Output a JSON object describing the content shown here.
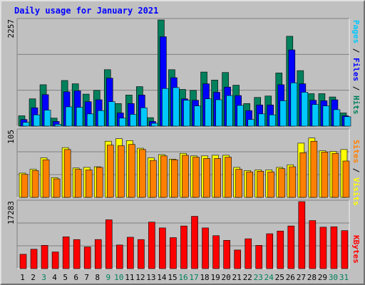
{
  "chart_data": {
    "type": "bar",
    "title": "Daily usage for January 2021",
    "days": [
      "1",
      "2",
      "3",
      "4",
      "5",
      "6",
      "7",
      "8",
      "9",
      "10",
      "11",
      "12",
      "13",
      "14",
      "15",
      "16",
      "17",
      "18",
      "19",
      "20",
      "21",
      "22",
      "23",
      "24",
      "25",
      "26",
      "27",
      "28",
      "29",
      "30",
      "31"
    ],
    "weekend_days": [
      "3",
      "9",
      "10",
      "16",
      "17",
      "23",
      "24",
      "30",
      "31"
    ],
    "panels": {
      "hits": {
        "ymax_label": "2257",
        "legend": [
          "Pages",
          "Files",
          "Hits"
        ],
        "series": [
          {
            "name": "Hits",
            "values": [
              220,
              580,
              880,
              170,
              970,
              900,
              680,
              760,
              1200,
              480,
              660,
              840,
              180,
              2257,
              1200,
              780,
              760,
              1150,
              980,
              1140,
              870,
              480,
              610,
              640,
              1130,
              1910,
              1180,
              690,
              690,
              620,
              280
            ]
          },
          {
            "name": "Files",
            "values": [
              140,
              390,
              670,
              100,
              730,
              750,
              520,
              560,
              1020,
              280,
              480,
              660,
              100,
              1900,
              1030,
              580,
              550,
              900,
              720,
              830,
              650,
              330,
              450,
              450,
              880,
              1620,
              900,
              550,
              540,
              560,
              220
            ]
          },
          {
            "name": "Pages",
            "values": [
              80,
              240,
              340,
              40,
              410,
              400,
              260,
              330,
              520,
              170,
              250,
              390,
              60,
              800,
              820,
              550,
              430,
              580,
              560,
              650,
              440,
              140,
              260,
              240,
              540,
              920,
              720,
              460,
              430,
              350,
              200
            ]
          }
        ]
      },
      "sites": {
        "ymax_label": "105",
        "legend": [
          "Sites",
          "Visits"
        ],
        "series": [
          {
            "name": "Visits",
            "values": [
              38,
              44,
              62,
              31,
              78,
              46,
              47,
              48,
              88,
              92,
              89,
              77,
              62,
              67,
              60,
              69,
              65,
              65,
              66,
              66,
              47,
              42,
              43,
              43,
              47,
              51,
              85,
              93,
              73,
              72,
              75
            ]
          },
          {
            "name": "Sites",
            "values": [
              36,
              42,
              59,
              29,
              75,
              44,
              43,
              47,
              82,
              81,
              83,
              75,
              58,
              65,
              59,
              66,
              63,
              61,
              61,
              63,
              44,
              40,
              41,
              40,
              45,
              48,
              70,
              88,
              71,
              69,
              57
            ]
          }
        ]
      },
      "kbytes": {
        "ymax_label": "17283",
        "legend": [
          "KBytes"
        ],
        "series": [
          {
            "name": "KBytes",
            "values": [
              3700,
              5000,
              6000,
              4300,
              8200,
              7500,
              5600,
              7500,
              12600,
              6100,
              8100,
              7500,
              12000,
              10500,
              8000,
              11000,
              13500,
              10500,
              8500,
              7300,
              4800,
              7700,
              6000,
              9000,
              9700,
              11000,
              17283,
              12400,
              10700,
              10800,
              9800
            ]
          }
        ]
      }
    },
    "ylim": {
      "hits": [
        0,
        2257
      ],
      "sites": [
        0,
        105
      ],
      "kbytes": [
        0,
        17283
      ]
    },
    "grid": true
  },
  "colors": {
    "background": "#c0c0c0",
    "plot_background": "#c0c0c0",
    "grid": "#808080",
    "title": "#0000ff",
    "hits": "#00805c",
    "files": "#0000ff",
    "pages": "#00c8ff",
    "sites": "#ff8000",
    "visits": "#ffff00",
    "kbytes": "#ff0000",
    "weekday_label": "#000000",
    "weekend_label": "#00805c"
  }
}
